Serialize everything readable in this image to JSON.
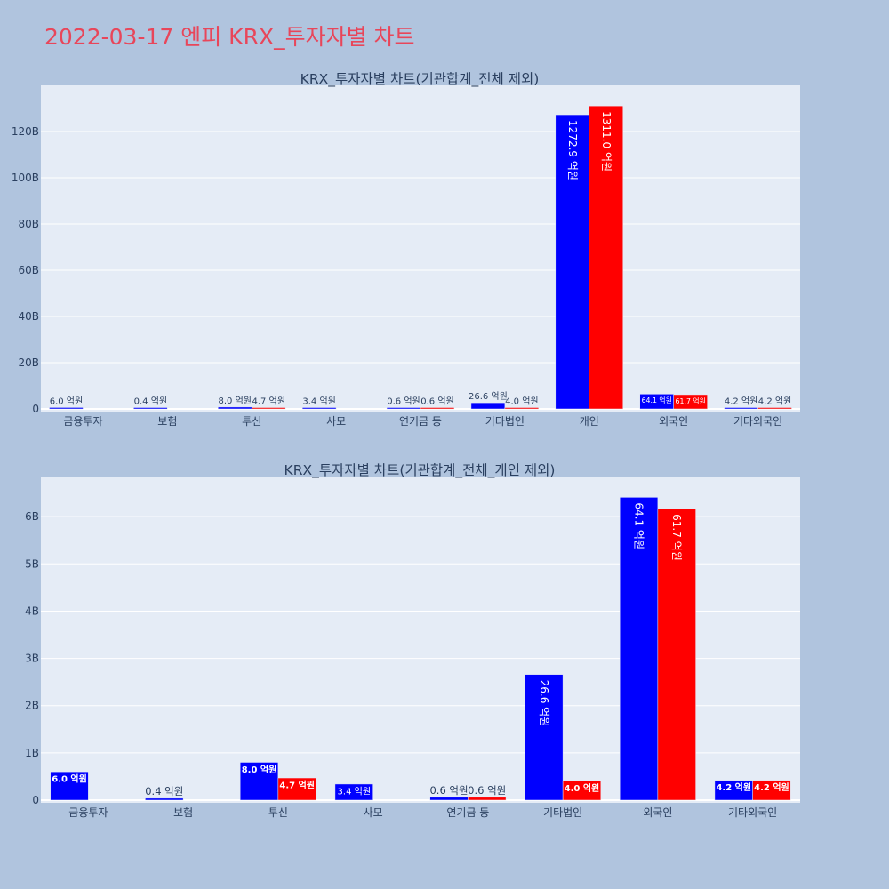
{
  "title": "2022-03-17 엔피 KRX_투자자별 차트",
  "colors": {
    "series1": "#0000ff",
    "series2": "#ff0000",
    "title": "#e8465a"
  },
  "chart_data": [
    {
      "type": "bar",
      "title": "KRX_투자자별 차트(기관합계_전체 제외)",
      "categories": [
        "금융투자",
        "보험",
        "투신",
        "사모",
        "연기금 등",
        "기타법인",
        "개인",
        "외국인",
        "기타외국인"
      ],
      "series": [
        {
          "values": [
            0.6,
            0.04,
            0.8,
            0.34,
            0.06,
            2.66,
            127.29,
            6.41,
            0.42
          ],
          "labels": [
            "6.0 억원",
            "0.4 억원",
            "8.0 억원",
            "3.4 억원",
            "0.6 억원",
            "26.6 억원",
            "1272.9 억원",
            "64.1 억원",
            "4.2 억원"
          ]
        },
        {
          "values": [
            0,
            0,
            0.47,
            0,
            0.06,
            0.4,
            131.1,
            6.17,
            0.42
          ],
          "labels": [
            "",
            "",
            "4.7 억원",
            "",
            "0.6 억원",
            "4.0 억원",
            "1311.0 억원",
            "61.7 억원",
            "4.2 억원"
          ]
        }
      ],
      "ylim": [
        0,
        140
      ],
      "yticks": [
        "0",
        "20B",
        "40B",
        "60B",
        "80B",
        "100B",
        "120B"
      ],
      "grid": true
    },
    {
      "type": "bar",
      "title": "KRX_투자자별 차트(기관합계_전체_개인 제외)",
      "categories": [
        "금융투자",
        "보험",
        "투신",
        "사모",
        "연기금 등",
        "기타법인",
        "외국인",
        "기타외국인"
      ],
      "series": [
        {
          "values": [
            0.6,
            0.04,
            0.8,
            0.34,
            0.06,
            2.66,
            6.41,
            0.42
          ],
          "labels": [
            "6.0 억원",
            "0.4 억원",
            "8.0 억원",
            "3.4 억원",
            "0.6 억원",
            "26.6 억원",
            "64.1 억원",
            "4.2 억원"
          ]
        },
        {
          "values": [
            0,
            0,
            0.47,
            0,
            0.06,
            0.4,
            6.17,
            0.42
          ],
          "labels": [
            "",
            "",
            "4.7 억원",
            "",
            "0.6 억원",
            "4.0 억원",
            "61.7 억원",
            "4.2 억원"
          ]
        }
      ],
      "ylim": [
        0,
        6.85
      ],
      "yticks": [
        "0",
        "1B",
        "2B",
        "3B",
        "4B",
        "5B",
        "6B"
      ],
      "grid": true
    }
  ]
}
